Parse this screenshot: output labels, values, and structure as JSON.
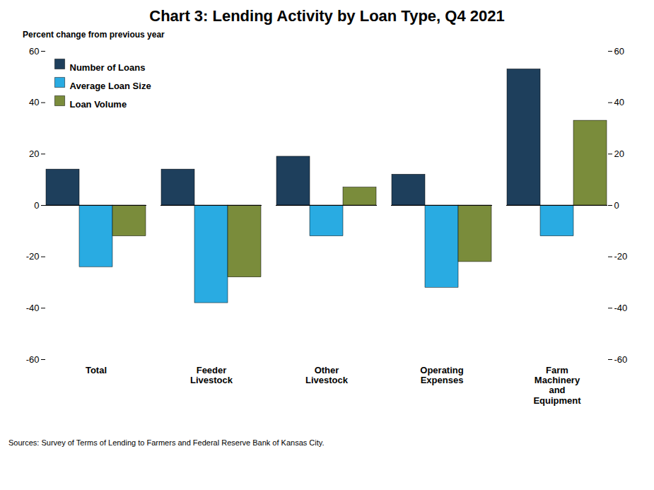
{
  "chart_data": {
    "type": "bar",
    "title": "Chart 3: Lending Activity by Loan Type, Q4 2021",
    "ylabel": "Percent change from previous year",
    "categories": [
      "Total",
      "Feeder\nLivestock",
      "Other\nLivestock",
      "Operating\nExpenses",
      "Farm\nMachinery\nand\nEquipment"
    ],
    "series": [
      {
        "name": "Number of Loans",
        "color": "#1e3f5c",
        "values": [
          14,
          14,
          19,
          12,
          53
        ]
      },
      {
        "name": "Average Loan Size",
        "color": "#29abe2",
        "values": [
          -24,
          -38,
          -12,
          -32,
          -12
        ]
      },
      {
        "name": "Loan Volume",
        "color": "#7a8c3b",
        "values": [
          -12,
          -28,
          7,
          -22,
          33
        ]
      }
    ],
    "ylim": [
      -60,
      60
    ],
    "yticks": [
      -60,
      -40,
      -20,
      0,
      20,
      40,
      60
    ],
    "grid": false,
    "legend": "upper left",
    "caption": "Sources: Survey of Terms of Lending to Farmers and Federal Reserve Bank of Kansas City."
  }
}
